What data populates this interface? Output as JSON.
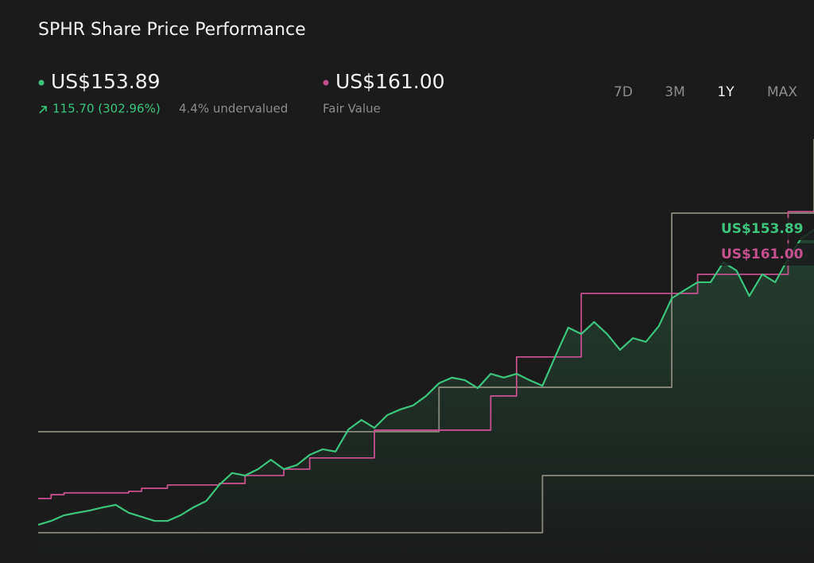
{
  "chart_data": {
    "type": "line",
    "title": "SPHR Share Price Performance",
    "header": {
      "price": "US$153.89",
      "change": "115.70 (302.96%)",
      "valuation": "4.4% undervalued",
      "fair_value": "US$161.00",
      "fair_value_label": "Fair Value"
    },
    "ranges": [
      "7D",
      "3M",
      "1Y",
      "MAX"
    ],
    "selected_range": "1Y",
    "ylim": [
      23.2,
      197.2
    ],
    "series": [
      {
        "color": "#8a8a7c",
        "step": true,
        "values": [
          74.7,
          74.7,
          74.7,
          74.7,
          74.7,
          74.7,
          74.7,
          74.7,
          74.7,
          74.7,
          74.7,
          74.7,
          74.7,
          74.7,
          74.7,
          74.7,
          74.7,
          74.7,
          74.7,
          74.7,
          74.7,
          74.7,
          74.7,
          74.7,
          74.7,
          74.7,
          74.7,
          74.7,
          74.7,
          74.7,
          74.7,
          92.1,
          92.1,
          92.1,
          92.1,
          92.1,
          92.1,
          92.1,
          92.1,
          92.1,
          92.1,
          92.1,
          92.1,
          92.1,
          92.1,
          92.1,
          92.1,
          92.1,
          92.1,
          160.4,
          160.4,
          160.4,
          160.4,
          160.4,
          160.4,
          160.4,
          160.4,
          160.4,
          160.4,
          160.4,
          189.4
        ]
      },
      {
        "color": "#8a8a7c",
        "step": true,
        "values": [
          35.1,
          35.1,
          35.1,
          35.1,
          35.1,
          35.1,
          35.1,
          35.1,
          35.1,
          35.1,
          35.1,
          35.1,
          35.1,
          35.1,
          35.1,
          35.1,
          35.1,
          35.1,
          35.1,
          35.1,
          35.1,
          35.1,
          35.1,
          35.1,
          35.1,
          35.1,
          35.1,
          35.1,
          35.1,
          35.1,
          35.1,
          35.1,
          35.1,
          35.1,
          35.1,
          35.1,
          35.1,
          35.1,
          35.1,
          57.5,
          57.5,
          57.5,
          57.5,
          57.5,
          57.5,
          57.5,
          57.5,
          57.5,
          57.5,
          57.5,
          57.5,
          57.5,
          57.5,
          57.5,
          57.5,
          57.5,
          57.5,
          57.5,
          57.5,
          57.5,
          57.5
        ]
      },
      {
        "color": "#c4508e",
        "step": true,
        "values": [
          48.5,
          50.0,
          50.7,
          50.7,
          50.7,
          50.7,
          50.7,
          51.3,
          52.5,
          52.5,
          53.8,
          53.8,
          53.8,
          53.8,
          54.4,
          54.4,
          57.5,
          57.5,
          57.5,
          60.0,
          60.0,
          64.4,
          64.4,
          64.4,
          64.4,
          64.4,
          75.3,
          75.3,
          75.3,
          75.3,
          75.3,
          75.3,
          75.3,
          75.3,
          75.3,
          88.7,
          88.7,
          104.0,
          104.0,
          104.0,
          104.0,
          104.0,
          128.9,
          128.9,
          128.9,
          128.9,
          128.9,
          128.9,
          128.9,
          128.9,
          128.9,
          136.4,
          136.4,
          136.4,
          136.4,
          136.4,
          136.4,
          136.4,
          161.0,
          161.0,
          161.0
        ]
      },
      {
        "color": "#3cc47c",
        "step": false,
        "area": true,
        "values": [
          38.2,
          39.7,
          41.9,
          42.9,
          43.8,
          45.0,
          46.0,
          42.9,
          41.3,
          39.7,
          39.7,
          41.9,
          45.0,
          47.5,
          53.8,
          58.5,
          57.5,
          60.0,
          63.7,
          60.0,
          61.6,
          65.6,
          67.8,
          66.9,
          75.6,
          79.3,
          76.2,
          81.2,
          83.4,
          85.0,
          88.7,
          93.7,
          95.9,
          94.9,
          91.8,
          97.4,
          95.9,
          97.4,
          94.9,
          92.7,
          104.3,
          115.5,
          113.0,
          117.7,
          113.0,
          106.8,
          111.4,
          109.9,
          116.1,
          127.0,
          130.2,
          133.3,
          133.3,
          141.1,
          137.9,
          127.9,
          136.4,
          133.3,
          142.6,
          150.4,
          153.89
        ]
      }
    ]
  }
}
